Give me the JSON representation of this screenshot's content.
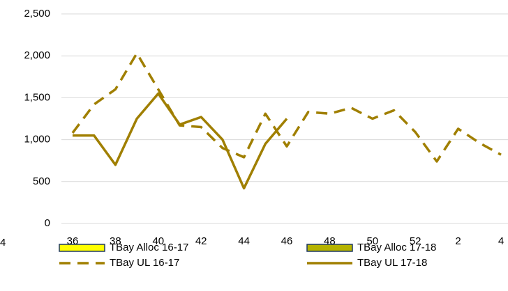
{
  "chart_data": {
    "type": "line",
    "categories": [
      "36",
      null,
      "38",
      null,
      "40",
      null,
      "42",
      null,
      "44",
      null,
      "46",
      null,
      "48",
      null,
      "50",
      null,
      "52",
      null,
      "2",
      null,
      "4"
    ],
    "series": [
      {
        "name": "TBay Alloc 16-17",
        "color": "#ffff00",
        "legend_style": "box",
        "values": [
          null,
          null,
          null,
          null,
          null,
          null,
          null,
          null,
          null,
          null,
          null,
          null,
          null,
          null,
          null,
          null,
          null,
          null,
          null,
          null,
          null
        ]
      },
      {
        "name": "TBay Alloc 17-18",
        "color": "#b5b300",
        "legend_style": "box",
        "values": [
          null,
          null,
          null,
          null,
          null,
          null,
          null,
          null,
          null,
          null,
          null,
          null,
          null,
          null,
          null,
          null,
          null,
          null,
          null,
          null,
          null
        ]
      },
      {
        "name": "TBay UL 16-17",
        "color": "#a07f00",
        "dashed": true,
        "values": [
          1080,
          1420,
          1600,
          2030,
          1600,
          1170,
          1150,
          900,
          790,
          1310,
          920,
          1330,
          1310,
          1380,
          1250,
          1350,
          1090,
          740,
          1130,
          960,
          820
        ]
      },
      {
        "name": "TBay UL 17-18",
        "color": "#a07f00",
        "dashed": false,
        "values": [
          1050,
          1050,
          700,
          1250,
          1550,
          1180,
          1270,
          1000,
          420,
          950,
          1250,
          null,
          null,
          null,
          null,
          null,
          null,
          null,
          null,
          null,
          null
        ]
      }
    ],
    "ylim": [
      0,
      2500
    ],
    "yticks": [
      0,
      500,
      {
        "value": 1000,
        "label": "1,000"
      },
      {
        "value": 1500,
        "label": "1,500"
      },
      {
        "value": 2000,
        "label": "2,000"
      },
      {
        "value": 2500,
        "label": "2,500"
      }
    ],
    "grid": true
  },
  "fragment_text": "4"
}
